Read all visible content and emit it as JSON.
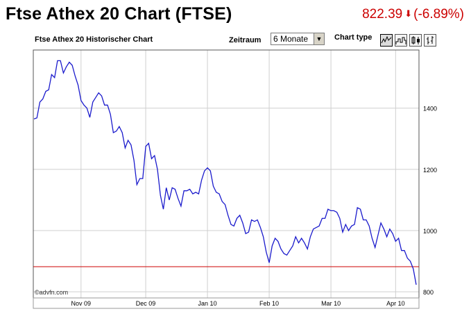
{
  "header": {
    "title": "Ftse Athex 20 Chart (FTSE)",
    "price": "822.39",
    "change": "(-6.89%)",
    "arrow_icon": "down-arrow-icon",
    "price_color": "#cc0000"
  },
  "controls": {
    "subtitle": "Ftse Athex 20 Historischer Chart",
    "period_label": "Zeitraum",
    "period_value": "6 Monate",
    "chart_type_label": "Chart type",
    "chart_type_icons": [
      "line-chart-icon",
      "area-chart-icon",
      "ohlc-chart-icon",
      "candlestick-chart-icon"
    ]
  },
  "chart_data": {
    "type": "line",
    "watermark": "©advfn.com",
    "x_tick_labels": [
      "Nov 09",
      "Dec 09",
      "Jan 10",
      "Feb 10",
      "Mar 10",
      "Apr 10"
    ],
    "y_tick_labels": [
      "800",
      "1000",
      "1200",
      "1400"
    ],
    "y_ticks": [
      800,
      1000,
      1200,
      1400
    ],
    "ylim": [
      780,
      1590
    ],
    "grid": true,
    "line_color": "#1a1acc",
    "reference_line": {
      "value": 882,
      "color": "#cc0000"
    },
    "series": [
      {
        "values": [
          1365,
          1368,
          1420,
          1430,
          1455,
          1460,
          1510,
          1500,
          1555,
          1555,
          1515,
          1535,
          1550,
          1540,
          1505,
          1475,
          1425,
          1410,
          1400,
          1370,
          1420,
          1435,
          1450,
          1440,
          1410,
          1410,
          1380,
          1320,
          1325,
          1340,
          1320,
          1270,
          1295,
          1280,
          1230,
          1150,
          1170,
          1170,
          1275,
          1285,
          1235,
          1245,
          1200,
          1115,
          1070,
          1140,
          1100,
          1140,
          1135,
          1105,
          1080,
          1130,
          1130,
          1135,
          1120,
          1125,
          1120,
          1165,
          1195,
          1205,
          1195,
          1145,
          1125,
          1120,
          1095,
          1085,
          1050,
          1020,
          1015,
          1040,
          1050,
          1025,
          990,
          995,
          1035,
          1030,
          1035,
          1010,
          980,
          930,
          895,
          950,
          975,
          965,
          940,
          925,
          920,
          935,
          950,
          980,
          960,
          975,
          960,
          940,
          980,
          1005,
          1010,
          1015,
          1040,
          1040,
          1070,
          1065,
          1065,
          1060,
          1040,
          995,
          1020,
          1000,
          1015,
          1020,
          1075,
          1070,
          1035,
          1035,
          1015,
          975,
          945,
          985,
          1025,
          1005,
          980,
          1005,
          990,
          965,
          975,
          935,
          935,
          910,
          900,
          875,
          823
        ]
      }
    ]
  }
}
